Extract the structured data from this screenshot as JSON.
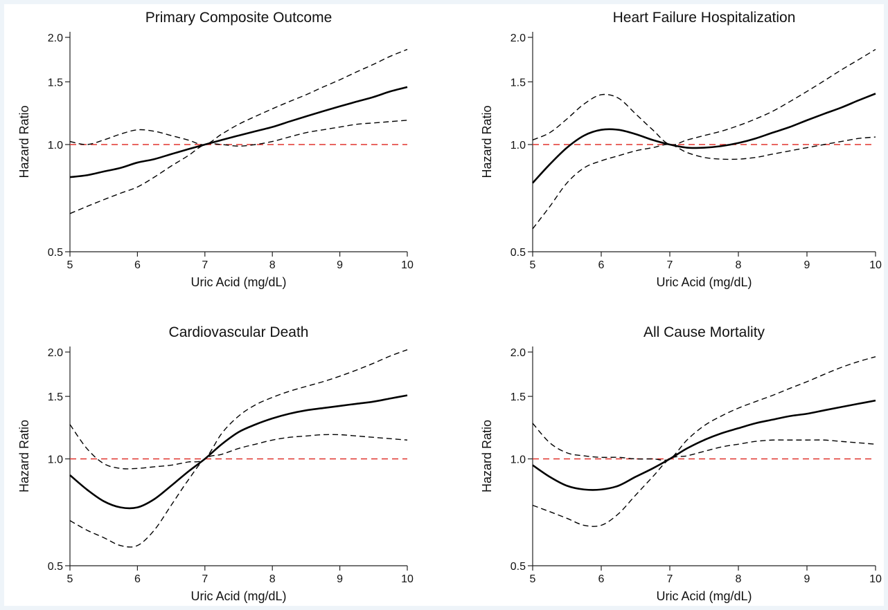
{
  "chart_data": [
    {
      "type": "line",
      "title": "Primary Composite Outcome",
      "xlabel": "Uric Acid (mg/dL)",
      "ylabel": "Hazard Ratio",
      "xlim": [
        5,
        10
      ],
      "ylim": [
        0.5,
        2.0
      ],
      "yscale": "log",
      "xticks": [
        5,
        6,
        7,
        8,
        9,
        10
      ],
      "yticks": [
        0.5,
        1.0,
        1.5,
        2.0
      ],
      "yticklabels": [
        "0.5",
        "1.0",
        "1.5",
        "2.0"
      ],
      "reference_line": {
        "y": 1.0,
        "color": "#e0322c",
        "style": "dashed"
      },
      "x": [
        5,
        5.25,
        5.5,
        5.75,
        6,
        6.25,
        6.5,
        6.75,
        7,
        7.25,
        7.5,
        7.75,
        8,
        8.25,
        8.5,
        8.75,
        9,
        9.25,
        9.5,
        9.75,
        10
      ],
      "series": [
        {
          "role": "estimate",
          "style": "solid",
          "values": [
            0.81,
            0.82,
            0.84,
            0.86,
            0.89,
            0.91,
            0.94,
            0.97,
            1.0,
            1.03,
            1.06,
            1.09,
            1.12,
            1.16,
            1.2,
            1.24,
            1.28,
            1.32,
            1.36,
            1.41,
            1.45
          ]
        },
        {
          "role": "upper",
          "style": "dashed",
          "values": [
            1.02,
            1.0,
            1.03,
            1.07,
            1.1,
            1.09,
            1.06,
            1.03,
            1.0,
            1.07,
            1.14,
            1.2,
            1.26,
            1.32,
            1.38,
            1.45,
            1.52,
            1.6,
            1.68,
            1.77,
            1.85
          ]
        },
        {
          "role": "lower",
          "style": "dashed",
          "values": [
            0.64,
            0.67,
            0.7,
            0.73,
            0.76,
            0.81,
            0.87,
            0.93,
            1.0,
            1.0,
            0.99,
            1.0,
            1.02,
            1.05,
            1.08,
            1.1,
            1.12,
            1.14,
            1.15,
            1.16,
            1.17
          ]
        }
      ]
    },
    {
      "type": "line",
      "title": "Heart Failure Hospitalization",
      "xlabel": "Uric Acid (mg/dL)",
      "ylabel": "Hazard Ratio",
      "xlim": [
        5,
        10
      ],
      "ylim": [
        0.5,
        2.0
      ],
      "yscale": "log",
      "xticks": [
        5,
        6,
        7,
        8,
        9,
        10
      ],
      "yticks": [
        0.5,
        1.0,
        1.5,
        2.0
      ],
      "yticklabels": [
        "0.5",
        "1.0",
        "1.5",
        "2.0"
      ],
      "reference_line": {
        "y": 1.0,
        "color": "#e0322c",
        "style": "dashed"
      },
      "x": [
        5,
        5.25,
        5.5,
        5.75,
        6,
        6.25,
        6.5,
        6.75,
        7,
        7.25,
        7.5,
        7.75,
        8,
        8.25,
        8.5,
        8.75,
        9,
        9.25,
        9.5,
        9.75,
        10
      ],
      "series": [
        {
          "role": "estimate",
          "style": "solid",
          "values": [
            0.78,
            0.88,
            0.98,
            1.06,
            1.1,
            1.1,
            1.07,
            1.03,
            1.0,
            0.98,
            0.98,
            0.99,
            1.01,
            1.04,
            1.08,
            1.12,
            1.17,
            1.22,
            1.27,
            1.33,
            1.39
          ]
        },
        {
          "role": "upper",
          "style": "dashed",
          "values": [
            1.03,
            1.08,
            1.18,
            1.3,
            1.38,
            1.35,
            1.22,
            1.1,
            1.0,
            1.03,
            1.06,
            1.09,
            1.13,
            1.18,
            1.24,
            1.32,
            1.41,
            1.51,
            1.62,
            1.73,
            1.85
          ]
        },
        {
          "role": "lower",
          "style": "dashed",
          "values": [
            0.58,
            0.67,
            0.78,
            0.86,
            0.9,
            0.93,
            0.96,
            0.98,
            1.0,
            0.95,
            0.92,
            0.91,
            0.91,
            0.92,
            0.94,
            0.96,
            0.98,
            1.0,
            1.02,
            1.04,
            1.05
          ]
        }
      ]
    },
    {
      "type": "line",
      "title": "Cardiovascular Death",
      "xlabel": "Uric Acid (mg/dL)",
      "ylabel": "Hazard Ratio",
      "xlim": [
        5,
        10
      ],
      "ylim": [
        0.5,
        2.0
      ],
      "yscale": "log",
      "xticks": [
        5,
        6,
        7,
        8,
        9,
        10
      ],
      "yticks": [
        0.5,
        1.0,
        1.5,
        2.0
      ],
      "yticklabels": [
        "0.5",
        "1.0",
        "1.5",
        "2.0"
      ],
      "reference_line": {
        "y": 1.0,
        "color": "#e0322c",
        "style": "dashed"
      },
      "x": [
        5,
        5.25,
        5.5,
        5.75,
        6,
        6.25,
        6.5,
        6.75,
        7,
        7.25,
        7.5,
        7.75,
        8,
        8.25,
        8.5,
        8.75,
        9,
        9.25,
        9.5,
        9.75,
        10
      ],
      "series": [
        {
          "role": "estimate",
          "style": "solid",
          "values": [
            0.9,
            0.82,
            0.76,
            0.73,
            0.73,
            0.77,
            0.84,
            0.92,
            1.0,
            1.1,
            1.19,
            1.25,
            1.3,
            1.34,
            1.37,
            1.39,
            1.41,
            1.43,
            1.45,
            1.48,
            1.51
          ]
        },
        {
          "role": "upper",
          "style": "dashed",
          "values": [
            1.25,
            1.07,
            0.97,
            0.94,
            0.94,
            0.95,
            0.96,
            0.98,
            1.0,
            1.18,
            1.32,
            1.42,
            1.49,
            1.55,
            1.6,
            1.65,
            1.71,
            1.78,
            1.86,
            1.95,
            2.03
          ]
        },
        {
          "role": "lower",
          "style": "dashed",
          "values": [
            0.67,
            0.63,
            0.6,
            0.57,
            0.57,
            0.63,
            0.74,
            0.87,
            1.0,
            1.03,
            1.07,
            1.1,
            1.13,
            1.15,
            1.16,
            1.17,
            1.17,
            1.16,
            1.15,
            1.14,
            1.13
          ]
        }
      ]
    },
    {
      "type": "line",
      "title": "All Cause Mortality",
      "xlabel": "Uric Acid (mg/dL)",
      "ylabel": "Hazard Ratio",
      "xlim": [
        5,
        10
      ],
      "ylim": [
        0.5,
        2.0
      ],
      "yscale": "log",
      "xticks": [
        5,
        6,
        7,
        8,
        9,
        10
      ],
      "yticks": [
        0.5,
        1.0,
        1.5,
        2.0
      ],
      "yticklabels": [
        "0.5",
        "1.0",
        "1.5",
        "2.0"
      ],
      "reference_line": {
        "y": 1.0,
        "color": "#e0322c",
        "style": "dashed"
      },
      "x": [
        5,
        5.25,
        5.5,
        5.75,
        6,
        6.25,
        6.5,
        6.75,
        7,
        7.25,
        7.5,
        7.75,
        8,
        8.25,
        8.5,
        8.75,
        9,
        9.25,
        9.5,
        9.75,
        10
      ],
      "series": [
        {
          "role": "estimate",
          "style": "solid",
          "values": [
            0.96,
            0.89,
            0.84,
            0.82,
            0.82,
            0.84,
            0.89,
            0.94,
            1.0,
            1.07,
            1.13,
            1.18,
            1.22,
            1.26,
            1.29,
            1.32,
            1.34,
            1.37,
            1.4,
            1.43,
            1.46
          ]
        },
        {
          "role": "upper",
          "style": "dashed",
          "values": [
            1.26,
            1.11,
            1.04,
            1.02,
            1.01,
            1.01,
            1.0,
            1.0,
            1.0,
            1.13,
            1.24,
            1.32,
            1.39,
            1.45,
            1.51,
            1.58,
            1.65,
            1.73,
            1.81,
            1.88,
            1.94
          ]
        },
        {
          "role": "lower",
          "style": "dashed",
          "values": [
            0.74,
            0.71,
            0.68,
            0.65,
            0.65,
            0.7,
            0.79,
            0.89,
            1.0,
            1.02,
            1.05,
            1.08,
            1.1,
            1.12,
            1.13,
            1.13,
            1.13,
            1.13,
            1.12,
            1.11,
            1.1
          ]
        }
      ]
    }
  ]
}
